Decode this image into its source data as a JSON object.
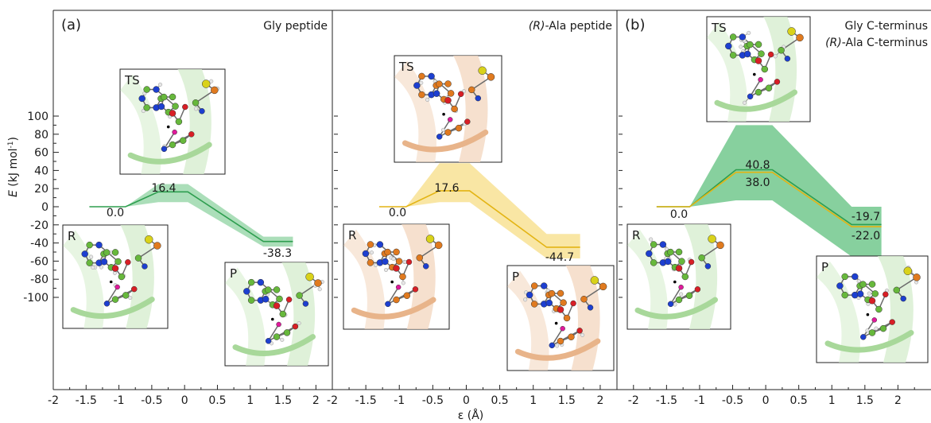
{
  "chart_data": [
    {
      "type": "line",
      "panel_label": "(a)",
      "title": "Gly peptide",
      "title_italic": "",
      "xlabel": "",
      "ylabel": "E (kJ mol-1)",
      "xlim": [
        -2,
        2.25
      ],
      "ylim": [
        -110,
        110
      ],
      "xticks": [
        -2,
        -1.5,
        -1,
        -0.5,
        0,
        0.5,
        1,
        1.5,
        2
      ],
      "yticks": [
        100,
        80,
        60,
        40,
        20,
        0,
        -20,
        -40,
        -60,
        -80,
        -100
      ],
      "states": [
        {
          "label": "R",
          "x": -1.2,
          "y": 0.0,
          "value_text": "0.0"
        },
        {
          "label": "TS",
          "x": 0.0,
          "y": 16.4,
          "value_text": "16.4"
        },
        {
          "label": "P",
          "x": 1.45,
          "y": -38.3,
          "value_text": "-38.3"
        }
      ],
      "series": [
        {
          "color": "#2e9e4f",
          "band_color": "#8fd3a1",
          "points": [
            {
              "x": -1.45,
              "y": 0
            },
            {
              "x": -0.9,
              "y": 0
            },
            {
              "x": -0.4,
              "y": 16.4
            },
            {
              "x": 0.05,
              "y": 16.4
            },
            {
              "x": 1.2,
              "y": -38.3
            },
            {
              "x": 1.65,
              "y": -38.3
            }
          ],
          "band_upper": [
            0,
            0,
            25,
            25,
            -33,
            -33
          ],
          "band_lower": [
            0,
            0,
            5,
            5,
            -44,
            -44
          ]
        }
      ],
      "insets": [
        "R",
        "TS",
        "P"
      ],
      "legend": []
    },
    {
      "type": "line",
      "panel_label": "",
      "title": "-Ala peptide",
      "title_italic": "(R)",
      "xlabel": "",
      "ylabel": "",
      "xlim": [
        -2,
        2.25
      ],
      "ylim": [
        -110,
        110
      ],
      "xticks": [
        -2,
        -1.5,
        -1,
        -0.5,
        0,
        0.5,
        1,
        1.5,
        2
      ],
      "yticks": [],
      "states": [
        {
          "label": "R",
          "x": -1.2,
          "y": 0.0,
          "value_text": "0.0"
        },
        {
          "label": "TS",
          "x": 0.0,
          "y": 17.6,
          "value_text": "17.6"
        },
        {
          "label": "P",
          "x": 1.45,
          "y": -44.7,
          "value_text": "-44.7"
        }
      ],
      "series": [
        {
          "color": "#e3b414",
          "band_color": "#f7dd85",
          "points": [
            {
              "x": -1.3,
              "y": 0
            },
            {
              "x": -0.9,
              "y": 0
            },
            {
              "x": -0.4,
              "y": 17.6
            },
            {
              "x": 0.05,
              "y": 17.6
            },
            {
              "x": 1.2,
              "y": -44.7
            },
            {
              "x": 1.7,
              "y": -44.7
            }
          ],
          "band_upper": [
            0,
            0,
            48,
            48,
            -30,
            -30
          ],
          "band_lower": [
            0,
            0,
            5,
            5,
            -57,
            -57
          ]
        }
      ],
      "insets": [
        "R",
        "TS",
        "P"
      ],
      "legend": []
    },
    {
      "type": "line",
      "panel_label": "(b)",
      "title": "",
      "title_italic": "",
      "xlabel": "",
      "ylabel": "",
      "xlim": [
        -2.25,
        2.5
      ],
      "ylim": [
        -110,
        110
      ],
      "xticks": [
        -2,
        -1.5,
        -1,
        -0.5,
        0,
        0.5,
        1,
        1.5,
        2
      ],
      "yticks": [],
      "states": [
        {
          "label": "R",
          "x": -1.2,
          "y": 0.0,
          "value_text": "0.0"
        },
        {
          "label": "TS",
          "x": 0.0,
          "y": 40.8,
          "value_text": "40.8"
        },
        {
          "label": "TS",
          "x": 0.0,
          "y": 38.0,
          "value_text": "38.0"
        },
        {
          "label": "P",
          "x": 1.45,
          "y": -19.7,
          "value_text": "-19.7"
        },
        {
          "label": "P",
          "x": 1.45,
          "y": -22.0,
          "value_text": "-22.0"
        }
      ],
      "series": [
        {
          "name": "Gly C-terminus",
          "color": "#2e9e4f",
          "band_color": "#5fc07e",
          "points": [
            {
              "x": -1.65,
              "y": 0
            },
            {
              "x": -1.15,
              "y": 0
            },
            {
              "x": -0.45,
              "y": 40.8
            },
            {
              "x": 0.1,
              "y": 40.8
            },
            {
              "x": 1.3,
              "y": -19.7
            },
            {
              "x": 1.75,
              "y": -19.7
            }
          ],
          "band_upper": [
            0,
            0,
            90,
            90,
            0,
            0
          ],
          "band_lower": [
            0,
            0,
            7,
            7,
            -55,
            -55
          ]
        },
        {
          "name": "-Ala C-terminus",
          "color": "#e3b414",
          "points": [
            {
              "x": -1.65,
              "y": 0
            },
            {
              "x": -1.15,
              "y": 0
            },
            {
              "x": -0.45,
              "y": 38.0
            },
            {
              "x": 0.1,
              "y": 38.0
            },
            {
              "x": 1.3,
              "y": -22.0
            },
            {
              "x": 1.75,
              "y": -22.0
            }
          ]
        }
      ],
      "insets": [
        "R",
        "TS",
        "P"
      ],
      "legend": [
        {
          "text": "Gly C-terminus",
          "prefix": "",
          "color": "#2e9e4f"
        },
        {
          "text": "-Ala C-terminus",
          "prefix": "(R)",
          "color": "#e3b414"
        }
      ]
    }
  ],
  "shared_xlabel": "ε (Å)",
  "colors": {
    "gly_green": "#2e9e4f",
    "ala_yellow": "#e3b414",
    "carbon_green": "#67b83c",
    "carbon_orange": "#e07a1f",
    "nitrogen_blue": "#1d3fd0",
    "oxygen_red": "#d81f26",
    "hydrogen_gray": "#e6e6e6",
    "transferring_h": "#e0199b",
    "sulfur_yellow": "#d9d21a"
  }
}
